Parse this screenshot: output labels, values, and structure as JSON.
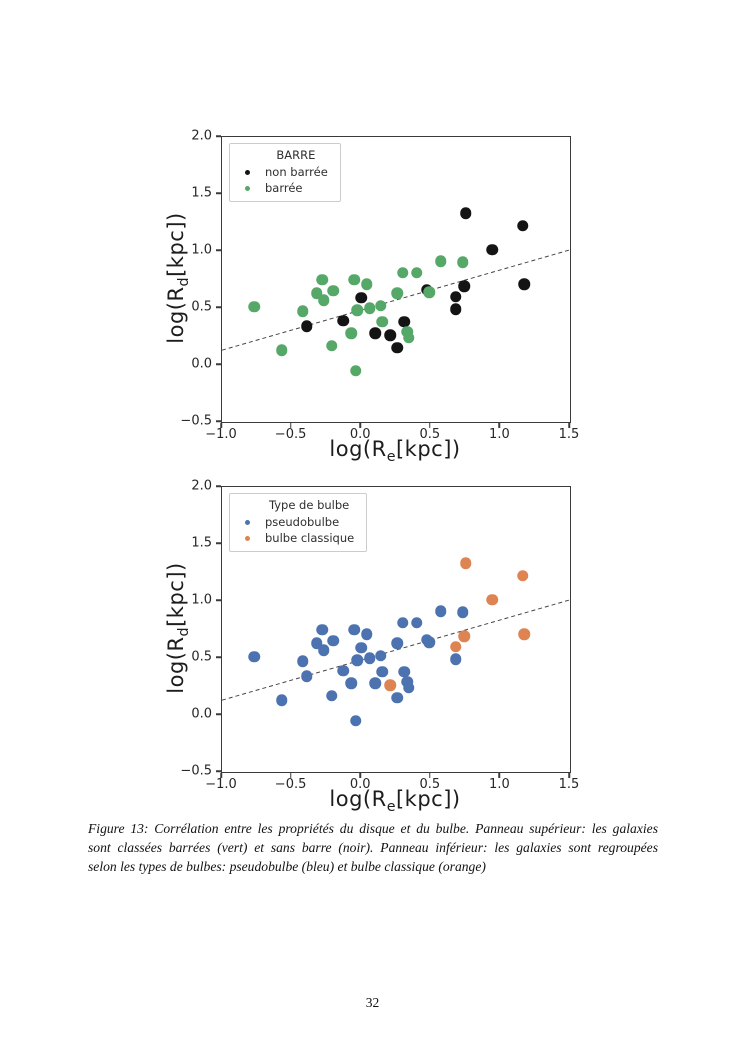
{
  "page": {
    "number": "32"
  },
  "caption": {
    "lines": [
      "Figure 13: Corrélation entre les propriétés du disque et du bulbe. Panneau supérieur: les galaxies",
      "sont classées barrées (vert) et sans barre (noir). Panneau inférieur: les galaxies sont regroupées",
      "selon les types de bulbes: pseudobulbe (bleu) et bulbe classique (orange)"
    ]
  },
  "colors": {
    "non_barree": "#141414",
    "barree": "#55a868",
    "pseudobulbe": "#4c72b0",
    "bulbe_classique": "#dd8452",
    "trend_line": "#444444",
    "axis": "#3a3a3a"
  },
  "chart_data": [
    {
      "type": "scatter",
      "title": "",
      "xlabel": "log(R_e[kpc])",
      "ylabel": "log(R_d[kpc])",
      "xlabel_parts": {
        "pre": "log(R",
        "sub": "e",
        "post": "[kpc])"
      },
      "ylabel_parts": {
        "pre": "log(R",
        "sub": "d",
        "post": "[kpc])"
      },
      "xlim": [
        -1.0,
        1.5
      ],
      "ylim": [
        -0.5,
        2.0
      ],
      "xticks": [
        -1.0,
        -0.5,
        0.0,
        0.5,
        1.0,
        1.5
      ],
      "xtick_labels": [
        "−1.0",
        "−0.5",
        "0.0",
        "0.5",
        "1.0",
        "1.5"
      ],
      "yticks": [
        -0.5,
        0.0,
        0.5,
        1.0,
        1.5,
        2.0
      ],
      "ytick_labels": [
        "−0.5",
        "0.0",
        "0.5",
        "1.0",
        "1.5",
        "2.0"
      ],
      "grid": false,
      "legend": {
        "title": "BARRE",
        "position": "upper left",
        "entries": [
          {
            "label": "non barrée",
            "color": "#141414"
          },
          {
            "label": "barrée",
            "color": "#55a868"
          }
        ]
      },
      "trend_line": {
        "style": "dashed",
        "x": [
          -1.0,
          1.5
        ],
        "y": [
          0.13,
          1.01
        ]
      },
      "series": [
        {
          "name": "non barrée",
          "color": "#141414",
          "points": [
            [
              -0.39,
              0.34
            ],
            [
              -0.13,
              0.39
            ],
            [
              0.0,
              0.59
            ],
            [
              0.1,
              0.28
            ],
            [
              0.21,
              0.26
            ],
            [
              0.26,
              0.15
            ],
            [
              0.31,
              0.38
            ],
            [
              0.47,
              0.66
            ],
            [
              0.68,
              0.6
            ],
            [
              0.68,
              0.49
            ],
            [
              0.74,
              0.69
            ],
            [
              0.75,
              1.33
            ],
            [
              0.94,
              1.01
            ],
            [
              1.16,
              1.22
            ],
            [
              1.17,
              0.71
            ]
          ]
        },
        {
          "name": "barrée",
          "color": "#55a868",
          "points": [
            [
              -0.77,
              0.51
            ],
            [
              -0.57,
              0.13
            ],
            [
              -0.42,
              0.47
            ],
            [
              -0.32,
              0.63
            ],
            [
              -0.28,
              0.75
            ],
            [
              -0.27,
              0.57
            ],
            [
              -0.2,
              0.65
            ],
            [
              -0.21,
              0.17
            ],
            [
              -0.05,
              0.75
            ],
            [
              -0.07,
              0.28
            ],
            [
              -0.04,
              -0.05
            ],
            [
              0.04,
              0.71
            ],
            [
              -0.03,
              0.48
            ],
            [
              0.06,
              0.5
            ],
            [
              0.14,
              0.52
            ],
            [
              0.15,
              0.38
            ],
            [
              0.26,
              0.63
            ],
            [
              0.3,
              0.81
            ],
            [
              0.4,
              0.81
            ],
            [
              0.33,
              0.29
            ],
            [
              0.34,
              0.24
            ],
            [
              0.49,
              0.64
            ],
            [
              0.57,
              0.91
            ],
            [
              0.73,
              0.9
            ]
          ]
        }
      ]
    },
    {
      "type": "scatter",
      "title": "",
      "xlabel": "log(R_e[kpc])",
      "ylabel": "log(R_d[kpc])",
      "xlabel_parts": {
        "pre": "log(R",
        "sub": "e",
        "post": "[kpc])"
      },
      "ylabel_parts": {
        "pre": "log(R",
        "sub": "d",
        "post": "[kpc])"
      },
      "xlim": [
        -1.0,
        1.5
      ],
      "ylim": [
        -0.5,
        2.0
      ],
      "xticks": [
        -1.0,
        -0.5,
        0.0,
        0.5,
        1.0,
        1.5
      ],
      "xtick_labels": [
        "−1.0",
        "−0.5",
        "0.0",
        "0.5",
        "1.0",
        "1.5"
      ],
      "yticks": [
        -0.5,
        0.0,
        0.5,
        1.0,
        1.5,
        2.0
      ],
      "ytick_labels": [
        "−0.5",
        "0.0",
        "0.5",
        "1.0",
        "1.5",
        "2.0"
      ],
      "grid": false,
      "legend": {
        "title": "Type de bulbe",
        "position": "upper left",
        "entries": [
          {
            "label": "pseudobulbe",
            "color": "#4c72b0"
          },
          {
            "label": "bulbe classique",
            "color": "#dd8452"
          }
        ]
      },
      "trend_line": {
        "style": "dashed",
        "x": [
          -1.0,
          1.5
        ],
        "y": [
          0.13,
          1.01
        ]
      },
      "series": [
        {
          "name": "pseudobulbe",
          "color": "#4c72b0",
          "points": [
            [
              -0.77,
              0.51
            ],
            [
              -0.57,
              0.13
            ],
            [
              -0.42,
              0.47
            ],
            [
              -0.32,
              0.63
            ],
            [
              -0.28,
              0.75
            ],
            [
              -0.27,
              0.57
            ],
            [
              -0.2,
              0.65
            ],
            [
              -0.21,
              0.17
            ],
            [
              -0.05,
              0.75
            ],
            [
              -0.07,
              0.28
            ],
            [
              -0.04,
              -0.05
            ],
            [
              0.04,
              0.71
            ],
            [
              -0.03,
              0.48
            ],
            [
              0.06,
              0.5
            ],
            [
              0.14,
              0.52
            ],
            [
              0.15,
              0.38
            ],
            [
              0.26,
              0.63
            ],
            [
              0.3,
              0.81
            ],
            [
              0.4,
              0.81
            ],
            [
              0.33,
              0.29
            ],
            [
              0.34,
              0.24
            ],
            [
              0.49,
              0.64
            ],
            [
              0.57,
              0.91
            ],
            [
              0.73,
              0.9
            ],
            [
              -0.39,
              0.34
            ],
            [
              -0.13,
              0.39
            ],
            [
              0.0,
              0.59
            ],
            [
              0.1,
              0.28
            ],
            [
              0.26,
              0.15
            ],
            [
              0.31,
              0.38
            ],
            [
              0.47,
              0.66
            ],
            [
              0.68,
              0.49
            ]
          ]
        },
        {
          "name": "bulbe classique",
          "color": "#dd8452",
          "points": [
            [
              0.21,
              0.26
            ],
            [
              0.68,
              0.6
            ],
            [
              0.74,
              0.69
            ],
            [
              0.75,
              1.33
            ],
            [
              0.94,
              1.01
            ],
            [
              1.16,
              1.22
            ],
            [
              1.17,
              0.71
            ]
          ]
        }
      ]
    }
  ]
}
